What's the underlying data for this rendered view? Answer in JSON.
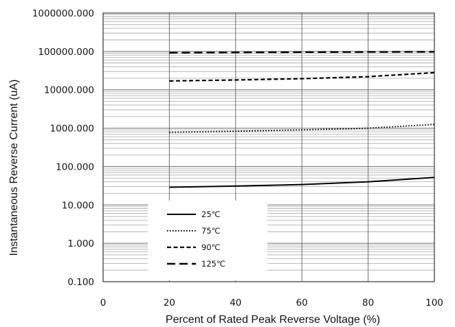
{
  "chart_data": {
    "type": "line",
    "title": "",
    "xlabel": "Percent of  Rated Peak Reverse Voltage (%)",
    "ylabel": "Instantaneous Reverse Current (uA)",
    "xlim": [
      0,
      100
    ],
    "ylim": [
      0.1,
      1000000
    ],
    "yscale": "log",
    "grid": true,
    "x_ticks": [
      "0",
      "20",
      "40",
      "60",
      "80",
      "100"
    ],
    "y_ticks": [
      "0.100",
      "1.000",
      "10.000",
      "100.000",
      "1000.000",
      "10000.000",
      "100000.000",
      "1000000.000"
    ],
    "legend_position": "lower-left",
    "x": [
      20,
      40,
      60,
      80,
      100
    ],
    "series": [
      {
        "name": "25℃",
        "style": "solid",
        "values": [
          29,
          31,
          34,
          40,
          52
        ]
      },
      {
        "name": "75℃",
        "style": "dotted",
        "values": [
          780,
          830,
          900,
          1000,
          1250
        ]
      },
      {
        "name": "90℃",
        "style": "dashed",
        "values": [
          17000,
          18000,
          19500,
          22000,
          28000
        ]
      },
      {
        "name": "125℃",
        "style": "long-dashed",
        "values": [
          92000,
          94000,
          96000,
          97000,
          98000
        ]
      }
    ]
  }
}
